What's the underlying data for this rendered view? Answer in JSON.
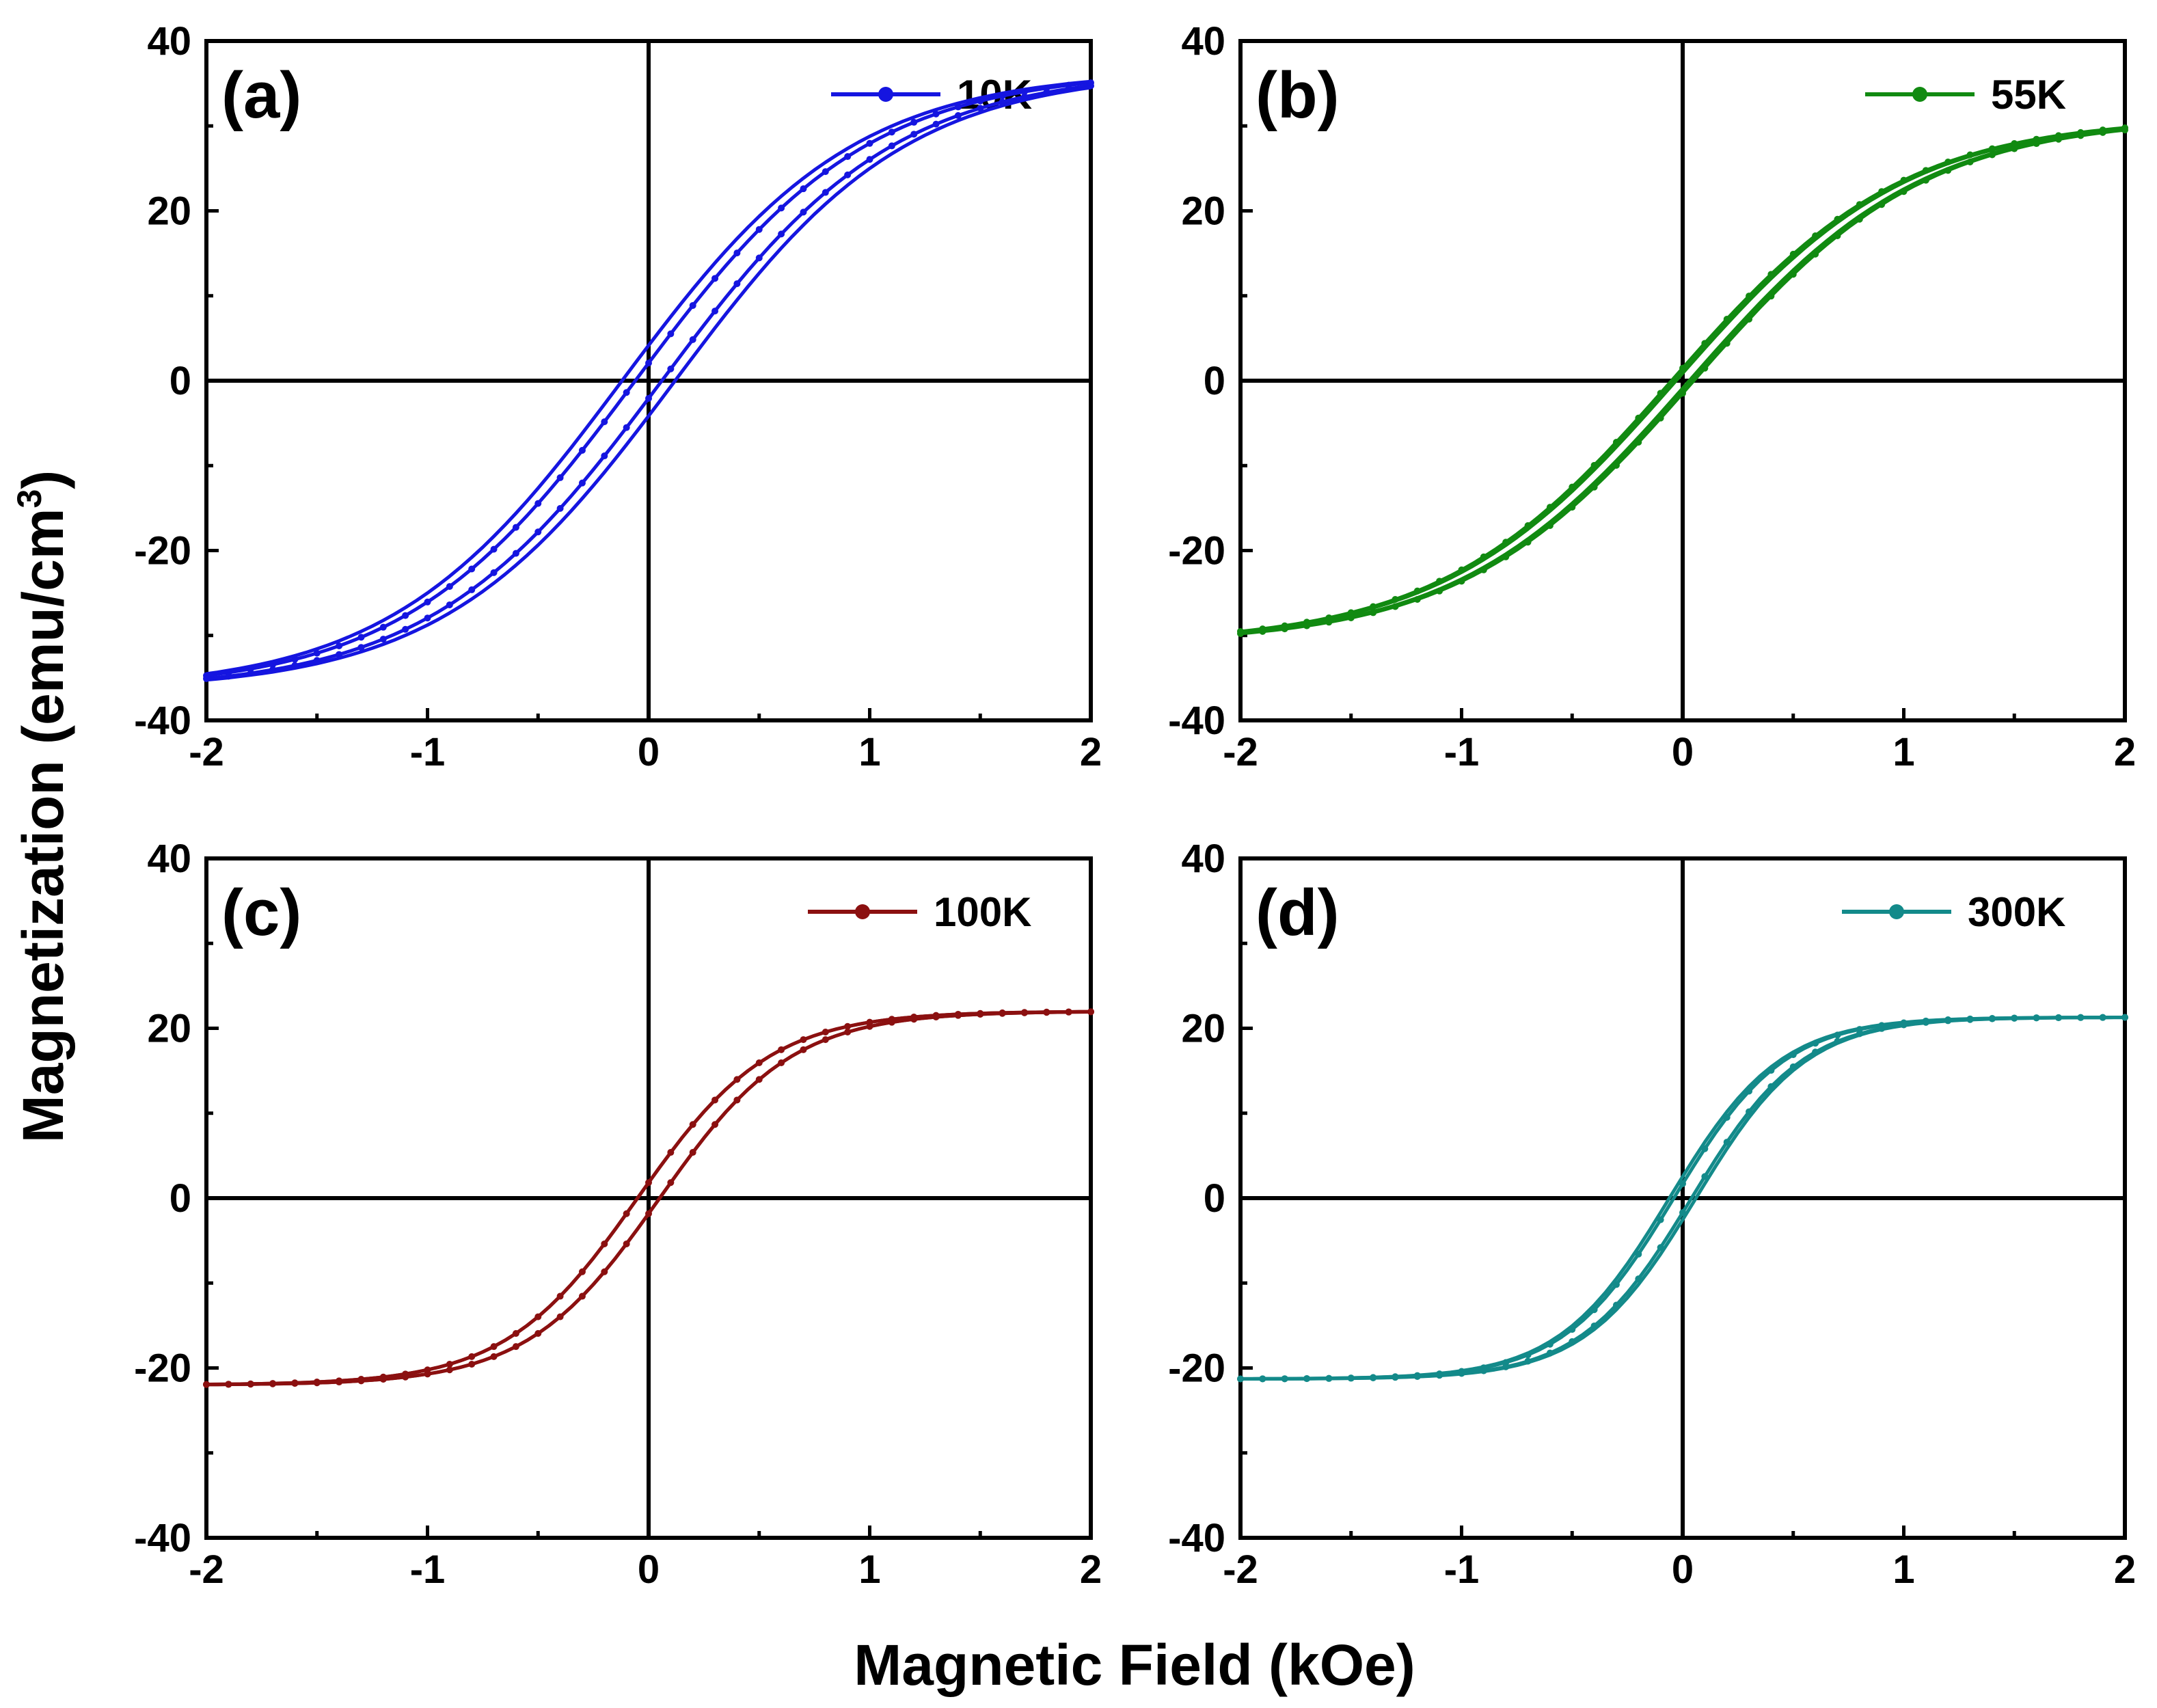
{
  "figure": {
    "xlabel": "Magnetic Field (kOe)",
    "ylabel_main": "Magnetization (emu/cm",
    "ylabel_superscript": "3",
    "ylabel_close": ")"
  },
  "chart_data": [
    {
      "type": "line",
      "panel": "(a)",
      "legend": "10K",
      "color": "#1515e0",
      "xlim": [
        -2,
        2
      ],
      "ylim": [
        -40,
        40
      ],
      "xticks": [
        -2,
        -1,
        0,
        1,
        2
      ],
      "yticks": [
        40,
        20,
        0,
        -20,
        -40
      ],
      "xtick_labels": [
        "-2",
        "-1",
        "0",
        "1",
        "2"
      ],
      "ytick_labels": [
        "40",
        "20",
        "0",
        "-20",
        "-40"
      ],
      "Ms": 36.5,
      "Hc": 0.06,
      "w": 1.05,
      "branch_offsets": [
        0.12
      ]
    },
    {
      "type": "line",
      "panel": "(b)",
      "legend": "55K",
      "color": "#118a11",
      "xlim": [
        -2,
        2
      ],
      "ylim": [
        -40,
        40
      ],
      "xticks": [
        -2,
        -1,
        0,
        1,
        2
      ],
      "yticks": [
        40,
        20,
        0,
        -20,
        -40
      ],
      "xtick_labels": [
        "-2",
        "-1",
        "0",
        "1",
        "2"
      ],
      "ytick_labels": [
        "40",
        "20",
        "0",
        "-20",
        "-40"
      ],
      "Ms": 31,
      "Hc": 0.05,
      "w": 1.05,
      "branch_offsets": [
        0.03
      ]
    },
    {
      "type": "line",
      "panel": "(c)",
      "legend": "100K",
      "color": "#8b1010",
      "xlim": [
        -2,
        2
      ],
      "ylim": [
        -40,
        40
      ],
      "xticks": [
        -2,
        -1,
        0,
        1,
        2
      ],
      "yticks": [
        40,
        20,
        0,
        -20,
        -40
      ],
      "xtick_labels": [
        "-2",
        "-1",
        "0",
        "1",
        "2"
      ],
      "ytick_labels": [
        "40",
        "20",
        "0",
        "-20",
        "-40"
      ],
      "Ms": 22,
      "Hc": 0.05,
      "w": 0.6,
      "branch_offsets": [
        0.05
      ]
    },
    {
      "type": "line",
      "panel": "(d)",
      "legend": "300K",
      "color": "#138a8a",
      "xlim": [
        -2,
        2
      ],
      "ylim": [
        -40,
        40
      ],
      "xticks": [
        -2,
        -1,
        0,
        1,
        2
      ],
      "yticks": [
        40,
        20,
        0,
        -20,
        -40
      ],
      "xtick_labels": [
        "-2",
        "-1",
        "0",
        "1",
        "2"
      ],
      "ytick_labels": [
        "40",
        "20",
        "0",
        "-20",
        "-40"
      ],
      "Ms": 21.3,
      "Hc": 0.04,
      "w": 0.5,
      "branch_offsets": [
        0.06
      ]
    }
  ]
}
